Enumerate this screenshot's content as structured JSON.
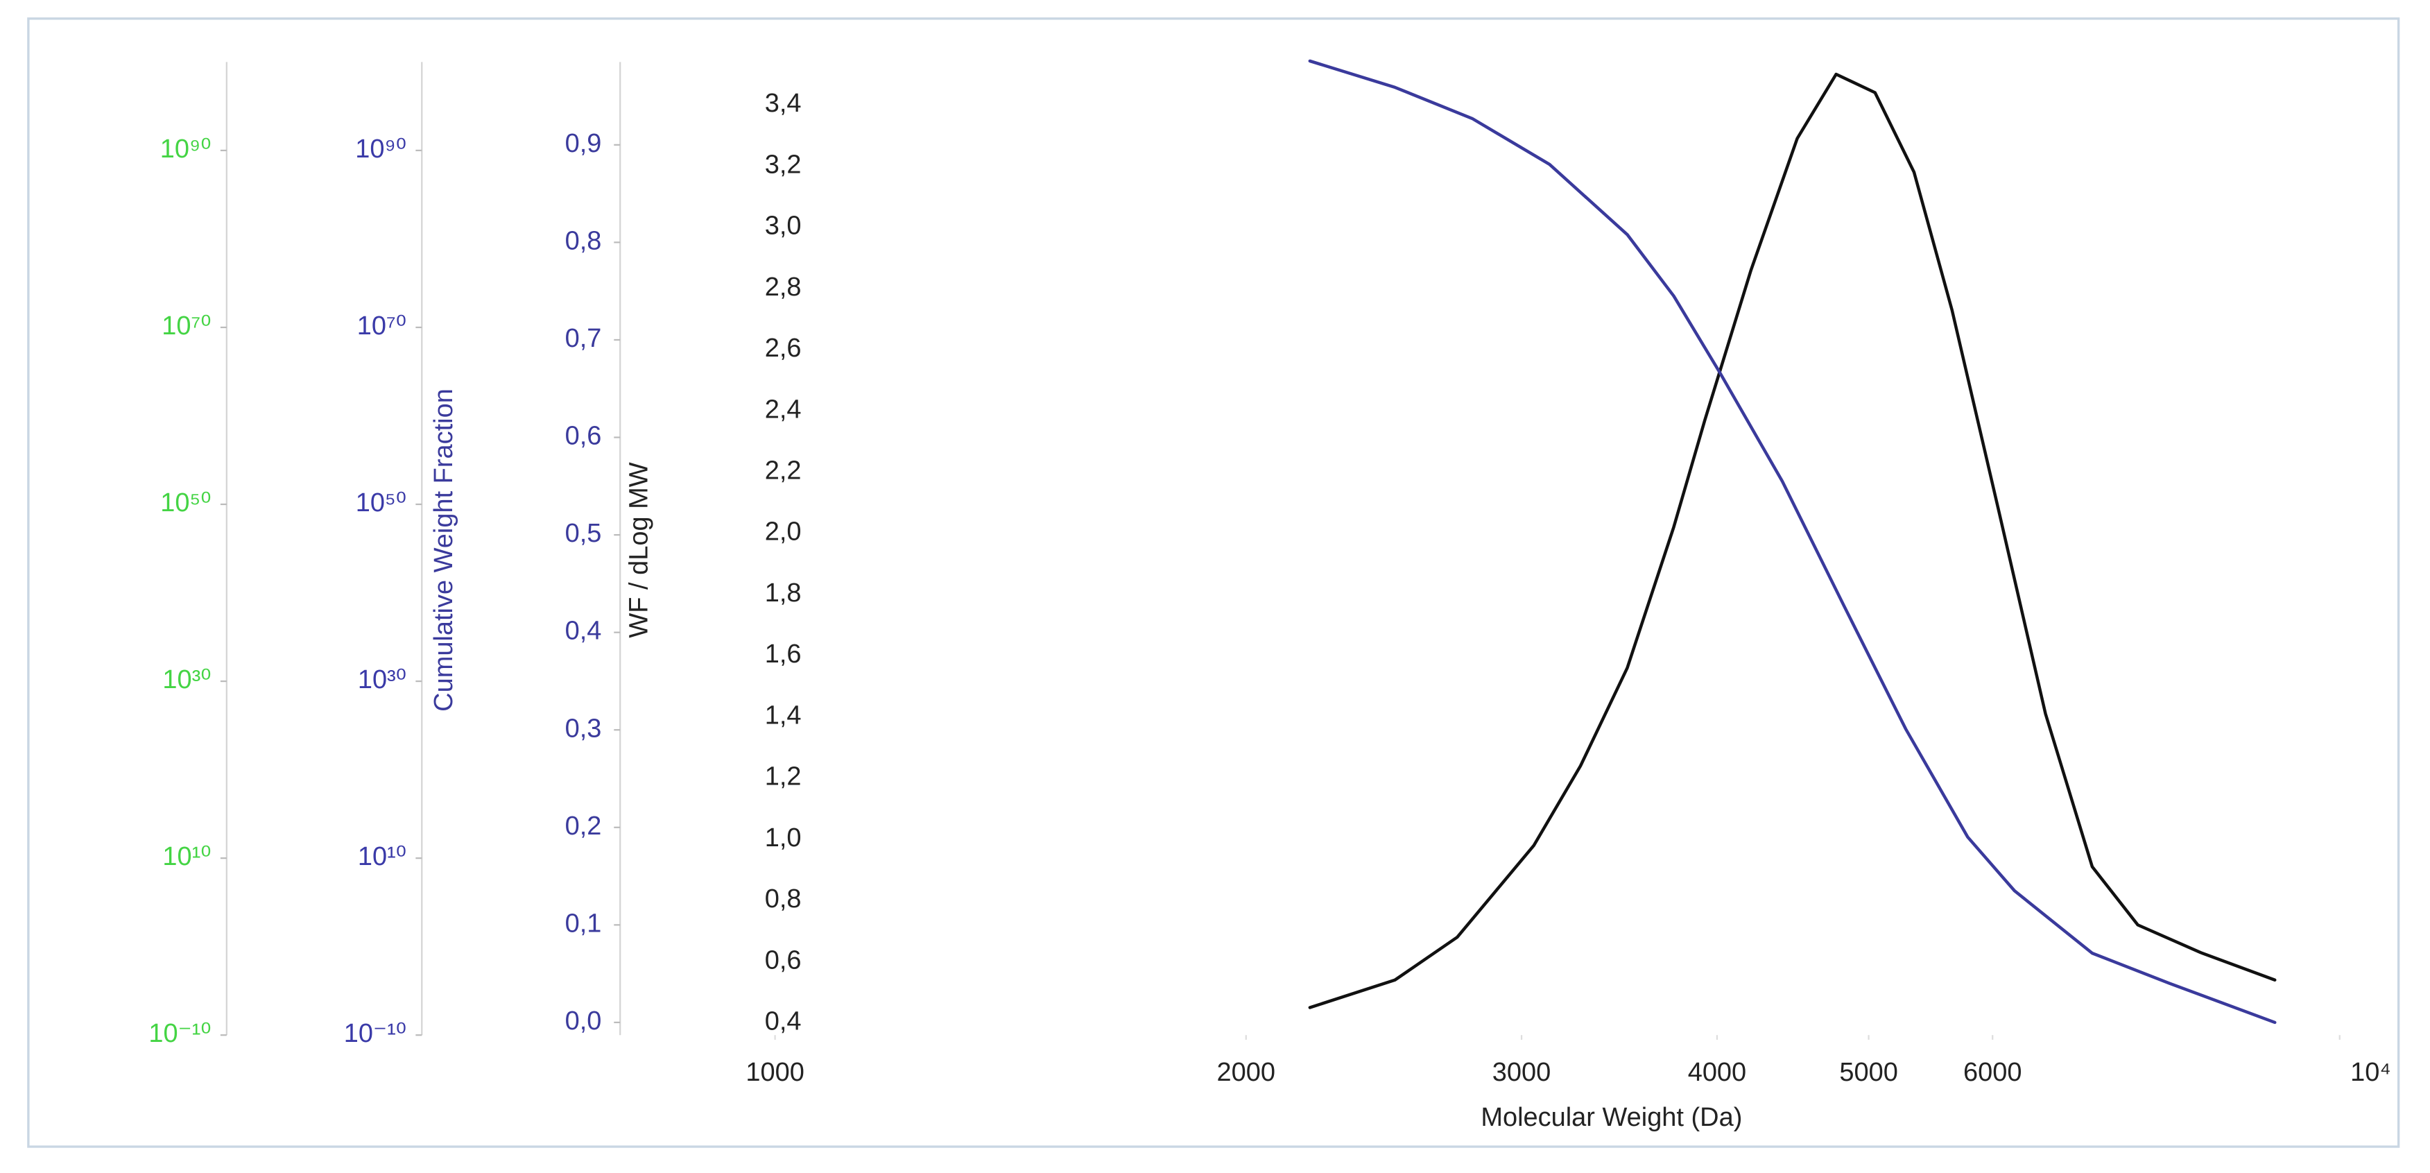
{
  "chart_data": {
    "type": "line",
    "xlabel": "Molecular Weight (Da)",
    "xscale": "log",
    "xlim": [
      1000,
      10000
    ],
    "xticks": [
      1000,
      2000,
      3000,
      4000,
      5000,
      6000,
      {
        "value": 10000,
        "label": "10⁴"
      }
    ],
    "ylabel": "WF / dLog MW",
    "ycolor": "#222222",
    "ylim": [
      0.36,
      3.54
    ],
    "yticks": [
      {
        "value": 0.4,
        "label": "0,4"
      },
      {
        "value": 0.6,
        "label": "0,6"
      },
      {
        "value": 0.8,
        "label": "0,8"
      },
      {
        "value": 1.0,
        "label": "1,0"
      },
      {
        "value": 1.2,
        "label": "1,2"
      },
      {
        "value": 1.4,
        "label": "1,4"
      },
      {
        "value": 1.6,
        "label": "1,6"
      },
      {
        "value": 1.8,
        "label": "1,8"
      },
      {
        "value": 2.0,
        "label": "2,0"
      },
      {
        "value": 2.2,
        "label": "2,2"
      },
      {
        "value": 2.4,
        "label": "2,4"
      },
      {
        "value": 2.6,
        "label": "2,6"
      },
      {
        "value": 2.8,
        "label": "2,8"
      },
      {
        "value": 3.0,
        "label": "3,0"
      },
      {
        "value": 3.2,
        "label": "3,2"
      },
      {
        "value": 3.4,
        "label": "3,4"
      }
    ],
    "y2label": "Cumulative Weight Fraction",
    "y2color": "#3a3a9c",
    "y2lim": [
      -0.013,
      0.985
    ],
    "y2ticks": [
      {
        "value": 0.0,
        "label": "0,0"
      },
      {
        "value": 0.1,
        "label": "0,1"
      },
      {
        "value": 0.2,
        "label": "0,2"
      },
      {
        "value": 0.3,
        "label": "0,3"
      },
      {
        "value": 0.4,
        "label": "0,4"
      },
      {
        "value": 0.5,
        "label": "0,5"
      },
      {
        "value": 0.6,
        "label": "0,6"
      },
      {
        "value": 0.7,
        "label": "0,7"
      },
      {
        "value": 0.8,
        "label": "0,8"
      },
      {
        "value": 0.9,
        "label": "0,9"
      }
    ],
    "y3scale": "log",
    "y3color": "#3a3aa8",
    "y3lim": [
      1e-10,
      1e+100
    ],
    "y3ticks": [
      {
        "value": 1e-10,
        "label": "10⁻¹⁰"
      },
      {
        "value": 10000000000.0,
        "label": "10¹⁰"
      },
      {
        "value": 1e+30,
        "label": "10³⁰"
      },
      {
        "value": 1e+50,
        "label": "10⁵⁰"
      },
      {
        "value": 1e+70,
        "label": "10⁷⁰"
      },
      {
        "value": 1e+90,
        "label": "10⁹⁰"
      }
    ],
    "y4scale": "log",
    "y4color": "#44d444",
    "y4lim": [
      1e-10,
      1e+100
    ],
    "y4ticks": [
      {
        "value": 1e-10,
        "label": "10⁻¹⁰"
      },
      {
        "value": 10000000000.0,
        "label": "10¹⁰"
      },
      {
        "value": 1e+30,
        "label": "10³⁰"
      },
      {
        "value": 1e+50,
        "label": "10⁵⁰"
      },
      {
        "value": 1e+70,
        "label": "10⁷⁰"
      },
      {
        "value": 1e+90,
        "label": "10⁹⁰"
      }
    ],
    "series": [
      {
        "color": "#111111",
        "axis": "y",
        "x": [
          2197,
          2490,
          2729,
          3055,
          3272,
          3505,
          3753,
          3929,
          4205,
          4501,
          4766,
          5047,
          5345,
          5652,
          6057,
          6486,
          6948,
          7430,
          8147,
          9090
        ],
        "values": [
          0.45,
          0.54,
          0.68,
          0.98,
          1.24,
          1.56,
          2.02,
          2.37,
          2.86,
          3.29,
          3.5,
          3.44,
          3.18,
          2.73,
          2.07,
          1.41,
          0.91,
          0.72,
          0.63,
          0.54
        ]
      },
      {
        "color": "#3a3a9c",
        "axis": "y2",
        "x": [
          2197,
          2490,
          2790,
          3126,
          3505,
          3753,
          4018,
          4403,
          4819,
          5280,
          5785,
          6197,
          6948,
          7786,
          9090
        ],
        "values": [
          0.986,
          0.959,
          0.927,
          0.88,
          0.808,
          0.745,
          0.666,
          0.555,
          0.428,
          0.301,
          0.19,
          0.135,
          0.071,
          0.04,
          0.0
        ]
      }
    ]
  }
}
